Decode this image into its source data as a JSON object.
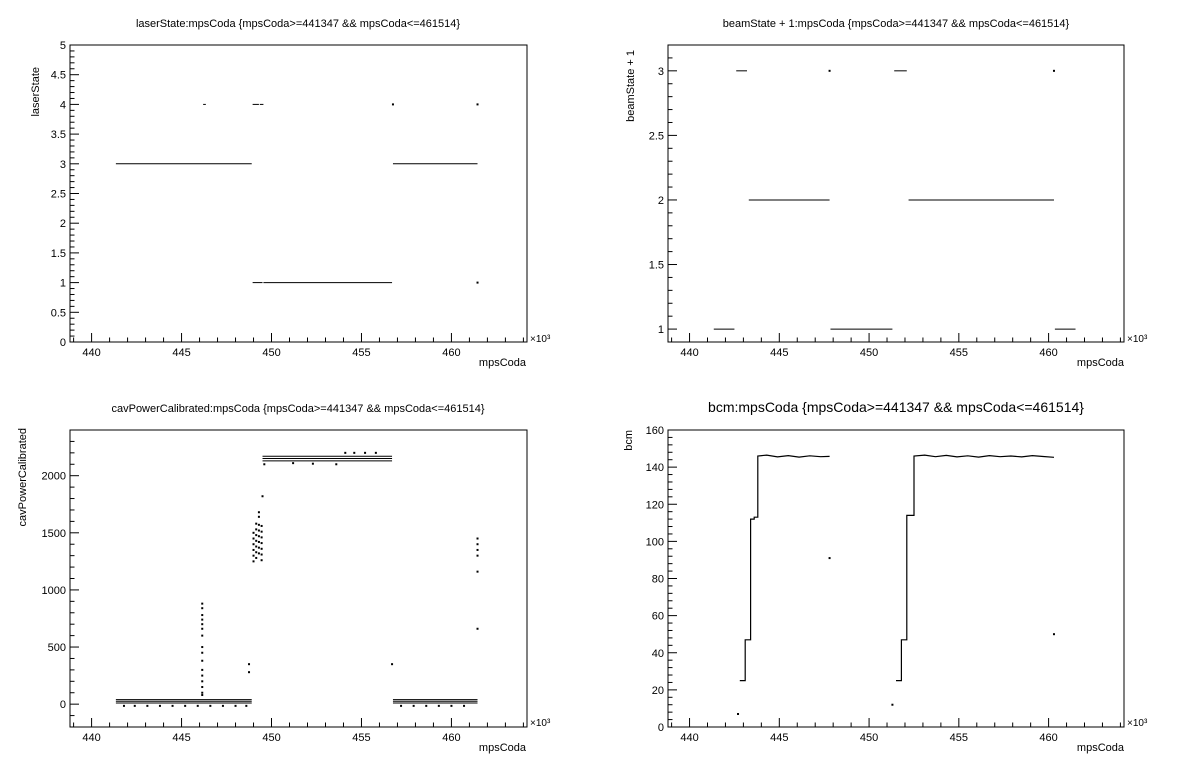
{
  "chart_data": [
    {
      "type": "scatter",
      "title": "laserState:mpsCoda {mpsCoda>=441347 && mpsCoda<=461514}",
      "xlabel": "mpsCoda",
      "ylabel": "laserState",
      "x_multiplier_label": "×10³",
      "xlim": [
        438.8,
        464.2
      ],
      "ylim": [
        0,
        5
      ],
      "x_ticks": [
        440,
        445,
        450,
        455,
        460
      ],
      "x_tick_labels": [
        "440",
        "445",
        "450",
        "455",
        "460"
      ],
      "y_ticks": [
        0,
        0.5,
        1,
        1.5,
        2,
        2.5,
        3,
        3.5,
        4,
        4.5,
        5
      ],
      "y_tick_labels": [
        "0",
        "0.5",
        "1",
        "1.5",
        "2",
        "2.5",
        "3",
        "3.5",
        "4",
        "4.5",
        "5"
      ],
      "grid": false,
      "segments": [
        {
          "x": [
            441.35,
            448.9
          ],
          "y": 3
        },
        {
          "x": [
            448.95,
            449.5
          ],
          "y": 1
        },
        {
          "x": [
            449.55,
            456.7
          ],
          "y": 1
        },
        {
          "x": [
            456.75,
            461.45
          ],
          "y": 3
        },
        {
          "x": [
            446.2,
            446.35
          ],
          "y": 4
        },
        {
          "x": [
            448.95,
            449.3
          ],
          "y": 4
        },
        {
          "x": [
            449.35,
            449.55
          ],
          "y": 4
        }
      ],
      "points": [
        {
          "x": 456.75,
          "y": 4
        },
        {
          "x": 461.45,
          "y": 4
        },
        {
          "x": 461.45,
          "y": 1
        }
      ]
    },
    {
      "type": "scatter",
      "title": "beamState + 1:mpsCoda {mpsCoda>=441347 && mpsCoda<=461514}",
      "xlabel": "mpsCoda",
      "ylabel": "beamState + 1",
      "x_multiplier_label": "×10³",
      "xlim": [
        438.8,
        464.2
      ],
      "ylim": [
        0.9,
        3.2
      ],
      "x_ticks": [
        440,
        445,
        450,
        455,
        460
      ],
      "x_tick_labels": [
        "440",
        "445",
        "450",
        "455",
        "460"
      ],
      "y_ticks": [
        1,
        1.5,
        2,
        2.5,
        3
      ],
      "y_tick_labels": [
        "1",
        "1.5",
        "2",
        "2.5",
        "3"
      ],
      "grid": false,
      "segments": [
        {
          "x": [
            441.35,
            442.5
          ],
          "y": 1
        },
        {
          "x": [
            442.6,
            443.2
          ],
          "y": 3
        },
        {
          "x": [
            443.3,
            447.8
          ],
          "y": 2
        },
        {
          "x": [
            447.85,
            451.3
          ],
          "y": 1
        },
        {
          "x": [
            451.4,
            452.1
          ],
          "y": 3
        },
        {
          "x": [
            452.2,
            460.3
          ],
          "y": 2
        },
        {
          "x": [
            460.35,
            461.5
          ],
          "y": 1
        }
      ],
      "points": [
        {
          "x": 447.8,
          "y": 3
        },
        {
          "x": 460.3,
          "y": 3
        }
      ]
    },
    {
      "type": "scatter",
      "title": "cavPowerCalibrated:mpsCoda {mpsCoda>=441347 && mpsCoda<=461514}",
      "xlabel": "mpsCoda",
      "ylabel": "cavPowerCalibrated",
      "x_multiplier_label": "×10³",
      "xlim": [
        438.8,
        464.2
      ],
      "ylim": [
        -200,
        2400
      ],
      "x_ticks": [
        440,
        445,
        450,
        455,
        460
      ],
      "x_tick_labels": [
        "440",
        "445",
        "450",
        "455",
        "460"
      ],
      "y_ticks": [
        0,
        500,
        1000,
        1500,
        2000
      ],
      "y_tick_labels": [
        "0",
        "500",
        "1000",
        "1500",
        "2000"
      ],
      "grid": false,
      "segments": [
        {
          "x": [
            441.35,
            448.9
          ],
          "y": 40
        },
        {
          "x": [
            441.35,
            448.9
          ],
          "y": 25
        },
        {
          "x": [
            441.35,
            448.9
          ],
          "y": 10
        },
        {
          "x": [
            449.5,
            456.7
          ],
          "y": 2170
        },
        {
          "x": [
            449.5,
            456.7
          ],
          "y": 2150
        },
        {
          "x": [
            449.5,
            456.7
          ],
          "y": 2130
        },
        {
          "x": [
            456.75,
            461.45
          ],
          "y": 40
        },
        {
          "x": [
            456.75,
            461.45
          ],
          "y": 25
        },
        {
          "x": [
            456.75,
            461.45
          ],
          "y": 10
        }
      ],
      "points": [
        {
          "x": 441.8,
          "y": -15
        },
        {
          "x": 442.4,
          "y": -15
        },
        {
          "x": 443.1,
          "y": -15
        },
        {
          "x": 443.8,
          "y": -15
        },
        {
          "x": 444.5,
          "y": -15
        },
        {
          "x": 445.2,
          "y": -15
        },
        {
          "x": 445.9,
          "y": -15
        },
        {
          "x": 446.6,
          "y": -15
        },
        {
          "x": 447.3,
          "y": -15
        },
        {
          "x": 448.0,
          "y": -15
        },
        {
          "x": 448.6,
          "y": -15
        },
        {
          "x": 446.15,
          "y": 880
        },
        {
          "x": 446.15,
          "y": 840
        },
        {
          "x": 446.15,
          "y": 780
        },
        {
          "x": 446.15,
          "y": 740
        },
        {
          "x": 446.15,
          "y": 700
        },
        {
          "x": 446.15,
          "y": 660
        },
        {
          "x": 446.15,
          "y": 600
        },
        {
          "x": 446.15,
          "y": 500
        },
        {
          "x": 446.15,
          "y": 450
        },
        {
          "x": 446.15,
          "y": 380
        },
        {
          "x": 446.15,
          "y": 300
        },
        {
          "x": 446.15,
          "y": 250
        },
        {
          "x": 446.15,
          "y": 200
        },
        {
          "x": 446.15,
          "y": 150
        },
        {
          "x": 446.15,
          "y": 100
        },
        {
          "x": 446.15,
          "y": 80
        },
        {
          "x": 448.75,
          "y": 350
        },
        {
          "x": 448.75,
          "y": 280
        },
        {
          "x": 449.0,
          "y": 1250
        },
        {
          "x": 449.0,
          "y": 1300
        },
        {
          "x": 449.0,
          "y": 1350
        },
        {
          "x": 449.0,
          "y": 1400
        },
        {
          "x": 449.0,
          "y": 1450
        },
        {
          "x": 449.0,
          "y": 1500
        },
        {
          "x": 449.15,
          "y": 1280
        },
        {
          "x": 449.15,
          "y": 1330
        },
        {
          "x": 449.15,
          "y": 1380
        },
        {
          "x": 449.15,
          "y": 1430
        },
        {
          "x": 449.15,
          "y": 1480
        },
        {
          "x": 449.15,
          "y": 1530
        },
        {
          "x": 449.15,
          "y": 1580
        },
        {
          "x": 449.3,
          "y": 1320
        },
        {
          "x": 449.3,
          "y": 1370
        },
        {
          "x": 449.3,
          "y": 1420
        },
        {
          "x": 449.3,
          "y": 1470
        },
        {
          "x": 449.3,
          "y": 1520
        },
        {
          "x": 449.3,
          "y": 1570
        },
        {
          "x": 449.3,
          "y": 1640
        },
        {
          "x": 449.3,
          "y": 1680
        },
        {
          "x": 449.45,
          "y": 1260
        },
        {
          "x": 449.45,
          "y": 1310
        },
        {
          "x": 449.45,
          "y": 1360
        },
        {
          "x": 449.45,
          "y": 1410
        },
        {
          "x": 449.45,
          "y": 1460
        },
        {
          "x": 449.45,
          "y": 1510
        },
        {
          "x": 449.45,
          "y": 1560
        },
        {
          "x": 449.5,
          "y": 1820
        },
        {
          "x": 449.6,
          "y": 2100
        },
        {
          "x": 451.2,
          "y": 2110
        },
        {
          "x": 452.3,
          "y": 2105
        },
        {
          "x": 453.6,
          "y": 2100
        },
        {
          "x": 454.1,
          "y": 2200
        },
        {
          "x": 454.6,
          "y": 2200
        },
        {
          "x": 455.2,
          "y": 2200
        },
        {
          "x": 455.8,
          "y": 2200
        },
        {
          "x": 456.7,
          "y": 350
        },
        {
          "x": 457.2,
          "y": -15
        },
        {
          "x": 457.9,
          "y": -15
        },
        {
          "x": 458.6,
          "y": -15
        },
        {
          "x": 459.3,
          "y": -15
        },
        {
          "x": 460.0,
          "y": -15
        },
        {
          "x": 460.7,
          "y": -15
        },
        {
          "x": 461.45,
          "y": 1450
        },
        {
          "x": 461.45,
          "y": 1400
        },
        {
          "x": 461.45,
          "y": 1350
        },
        {
          "x": 461.45,
          "y": 1300
        },
        {
          "x": 461.45,
          "y": 1160
        },
        {
          "x": 461.45,
          "y": 660
        }
      ]
    },
    {
      "type": "scatter",
      "title": "bcm:mpsCoda {mpsCoda>=441347 && mpsCoda<=461514}",
      "xlabel": "mpsCoda",
      "ylabel": "bcm",
      "x_multiplier_label": "×10³",
      "xlim": [
        438.8,
        464.2
      ],
      "ylim": [
        0,
        160
      ],
      "x_ticks": [
        440,
        445,
        450,
        455,
        460
      ],
      "x_tick_labels": [
        "440",
        "445",
        "450",
        "455",
        "460"
      ],
      "y_ticks": [
        0,
        20,
        40,
        60,
        80,
        100,
        120,
        140,
        160
      ],
      "y_tick_labels": [
        "0",
        "20",
        "40",
        "60",
        "80",
        "100",
        "120",
        "140",
        "160"
      ],
      "grid": false,
      "polylines": [
        [
          [
            442.8,
            25
          ],
          [
            443.1,
            25
          ],
          [
            443.1,
            47
          ],
          [
            443.4,
            47
          ],
          [
            443.4,
            112
          ],
          [
            443.6,
            112
          ],
          [
            443.6,
            113
          ],
          [
            443.8,
            113
          ],
          [
            443.8,
            146
          ],
          [
            444.3,
            146.5
          ],
          [
            444.9,
            145.5
          ],
          [
            445.5,
            146.2
          ],
          [
            446.1,
            145.4
          ],
          [
            446.7,
            146.1
          ],
          [
            447.3,
            145.6
          ],
          [
            447.8,
            145.8
          ]
        ],
        [
          [
            451.5,
            25
          ],
          [
            451.8,
            25
          ],
          [
            451.8,
            47
          ],
          [
            452.1,
            47
          ],
          [
            452.1,
            114
          ],
          [
            452.5,
            114
          ],
          [
            452.5,
            146
          ],
          [
            453.1,
            146.5
          ],
          [
            453.7,
            145.6
          ],
          [
            454.3,
            146.3
          ],
          [
            454.9,
            145.5
          ],
          [
            455.5,
            146.1
          ],
          [
            456.1,
            145.4
          ],
          [
            456.7,
            146.2
          ],
          [
            457.3,
            145.6
          ],
          [
            457.9,
            146.0
          ],
          [
            458.5,
            145.5
          ],
          [
            459.1,
            146.2
          ],
          [
            459.7,
            145.7
          ],
          [
            460.3,
            145.3
          ]
        ]
      ],
      "points": [
        {
          "x": 442.7,
          "y": 7
        },
        {
          "x": 451.3,
          "y": 12
        },
        {
          "x": 447.8,
          "y": 91
        },
        {
          "x": 460.3,
          "y": 50
        }
      ]
    }
  ]
}
